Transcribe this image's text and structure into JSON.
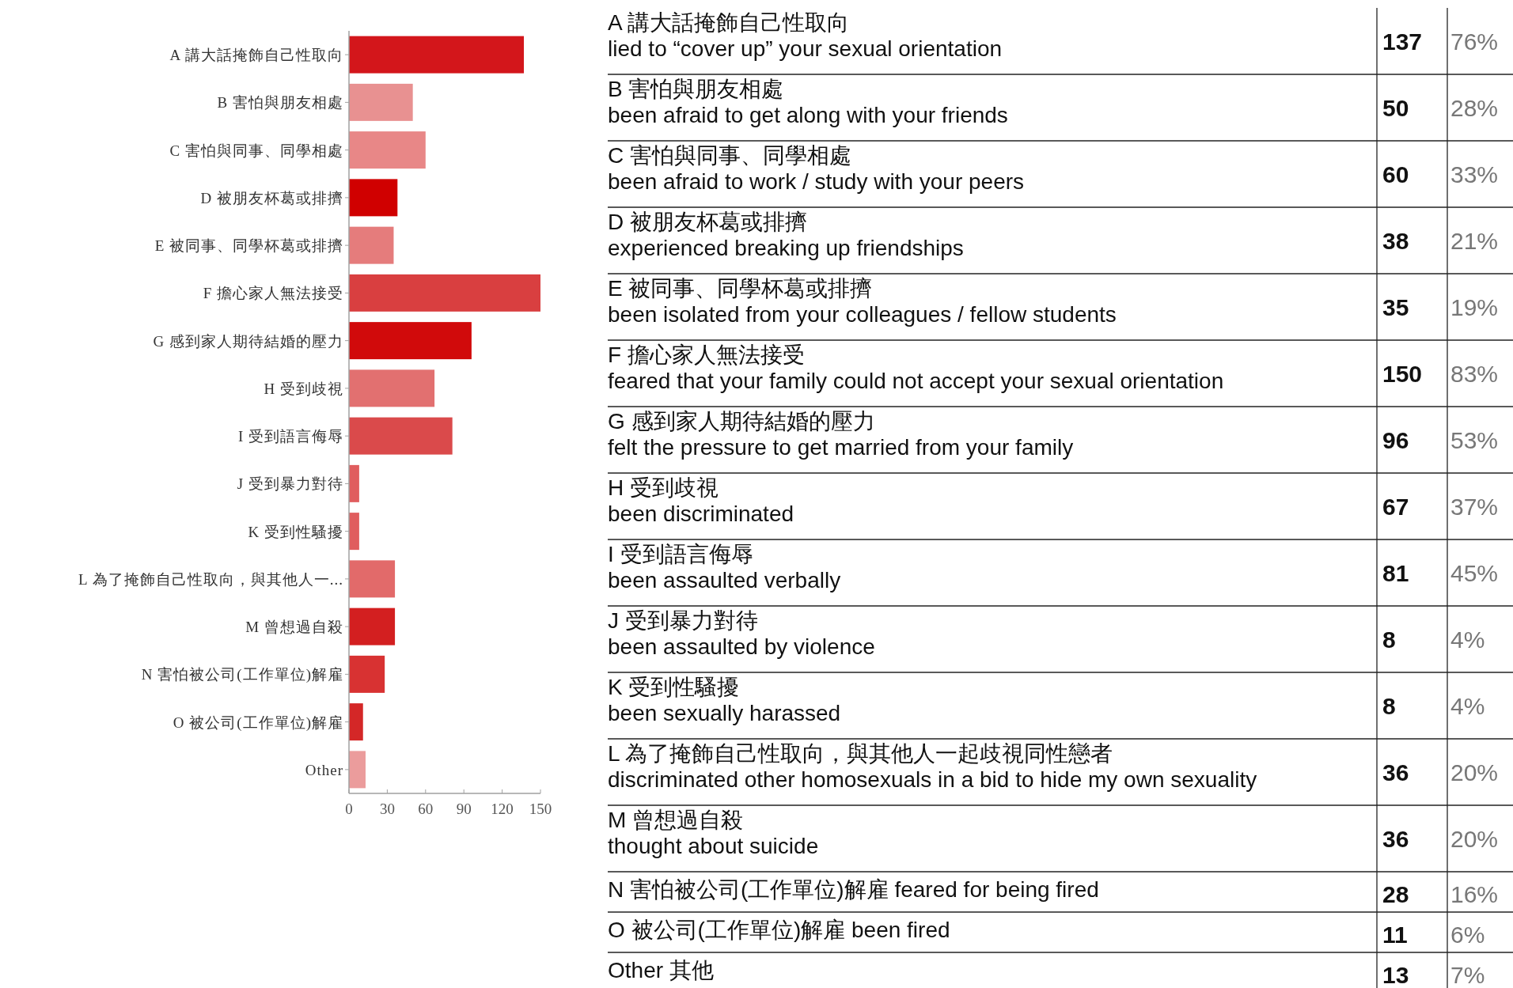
{
  "chart_data": [
    {
      "type": "bar",
      "orientation": "horizontal",
      "categories": [
        "A 講大話掩飾自己性取向",
        "B 害怕與朋友相處",
        "C 害怕與同事、同學相處",
        "D 被朋友杯葛或排擠",
        "E 被同事、同學杯葛或排擠",
        "F 擔心家人無法接受",
        "G 感到家人期待結婚的壓力",
        "H 受到歧視",
        "I 受到語言侮辱",
        "J 受到暴力對待",
        "K 受到性騷擾",
        "L 為了掩飾自己性取向，與其他人一...",
        "M 曾想過自殺",
        "N 害怕被公司(工作單位)解雇",
        "O 被公司(工作單位)解雇",
        "Other"
      ],
      "values": [
        137,
        50,
        60,
        38,
        35,
        150,
        96,
        67,
        81,
        8,
        8,
        36,
        36,
        28,
        11,
        13
      ],
      "colors": [
        "#d3161b",
        "#e89191",
        "#e88787",
        "#d00000",
        "#e57c7c",
        "#d93f40",
        "#d10a0b",
        "#e27070",
        "#da4a4b",
        "#e05d5e",
        "#e05d5e",
        "#e26a6a",
        "#d31f20",
        "#d83232",
        "#d42727",
        "#eb9c9c"
      ],
      "xlim": [
        0,
        150
      ],
      "xticks": [
        0,
        30,
        60,
        90,
        120,
        150
      ]
    },
    {
      "type": "other",
      "categories": [
        "A 講大話掩飾自己性取向\nlied to “cover up” your sexual orientation",
        "B 害怕與朋友相處\nbeen afraid to get along with your friends",
        "C 害怕與同事、同學相處\nbeen afraid to work / study with your peers",
        "D 被朋友杯葛或排擠\nexperienced breaking up friendships",
        "E 被同事、同學杯葛或排擠\nbeen isolated from your colleagues / fellow students",
        "F 擔心家人無法接受\nfeared that your family could not accept your sexual orientation",
        "G 感到家人期待結婚的壓力\nfelt the pressure to get married from your family",
        "H 受到歧視\nbeen discriminated",
        "I 受到語言侮辱\nbeen assaulted verbally",
        "J 受到暴力對待\nbeen assaulted by violence",
        "K 受到性騷擾\nbeen sexually harassed",
        "L 為了掩飾自己性取向，與其他人一起歧視同性戀者\ndiscriminated other homosexuals in a bid to hide my own sexuality",
        "M 曾想過自殺\nthought about suicide",
        "N 害怕被公司(工作單位)解雇 feared for being fired",
        "O 被公司(工作單位)解雇 been fired",
        "Other 其他"
      ],
      "series": [
        {
          "values": [
            137,
            50,
            60,
            38,
            35,
            150,
            96,
            67,
            81,
            8,
            8,
            36,
            36,
            28,
            11,
            13
          ]
        },
        {
          "values": [
            76,
            28,
            33,
            21,
            19,
            83,
            53,
            37,
            45,
            4,
            4,
            20,
            20,
            16,
            6,
            7
          ],
          "value_labels": [
            "76%",
            "28%",
            "33%",
            "21%",
            "19%",
            "83%",
            "53%",
            "37%",
            "45%",
            "4%",
            "4%",
            "20%",
            "20%",
            "16%",
            "6%",
            "7%"
          ]
        }
      ],
      "data_labels": true
    }
  ]
}
